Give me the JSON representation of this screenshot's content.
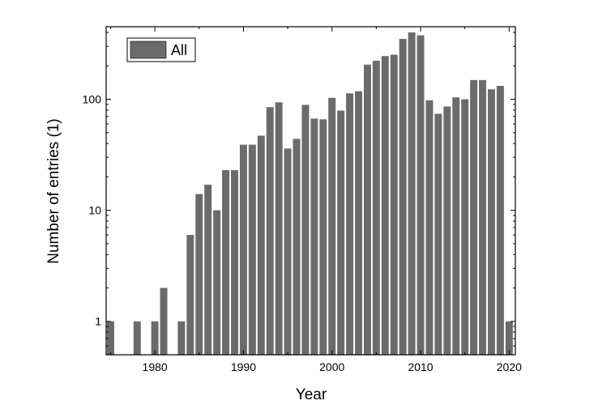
{
  "chart_data": {
    "type": "bar",
    "xlabel": "Year",
    "ylabel": "Number of entries (1)",
    "yscale": "log",
    "ylim": [
      0.5,
      450
    ],
    "xlim": [
      1974.5,
      2020.7
    ],
    "x_ticks": [
      1980,
      1990,
      2000,
      2010,
      2020
    ],
    "y_ticks": [
      1,
      10,
      100
    ],
    "y_tick_labels": [
      "1",
      "10",
      "100"
    ],
    "grid": false,
    "legend_position": "top-left",
    "bar_color": "#6b6b6b",
    "series": [
      {
        "name": "All",
        "x": [
          1975,
          1978,
          1980,
          1981,
          1983,
          1984,
          1985,
          1986,
          1987,
          1988,
          1989,
          1990,
          1991,
          1992,
          1993,
          1994,
          1995,
          1996,
          1997,
          1998,
          1999,
          2000,
          2001,
          2002,
          2003,
          2004,
          2005,
          2006,
          2007,
          2008,
          2009,
          2010,
          2011,
          2012,
          2013,
          2014,
          2015,
          2016,
          2017,
          2018,
          2019,
          2020
        ],
        "values": [
          1,
          1,
          1,
          2,
          1,
          6,
          14,
          17,
          10,
          23,
          23,
          39,
          39,
          47,
          85,
          94,
          36,
          44,
          89,
          67,
          66,
          103,
          79,
          113,
          118,
          205,
          222,
          245,
          252,
          350,
          400,
          377,
          98,
          74,
          86,
          104,
          100,
          149,
          149,
          123,
          132,
          1
        ]
      }
    ]
  }
}
